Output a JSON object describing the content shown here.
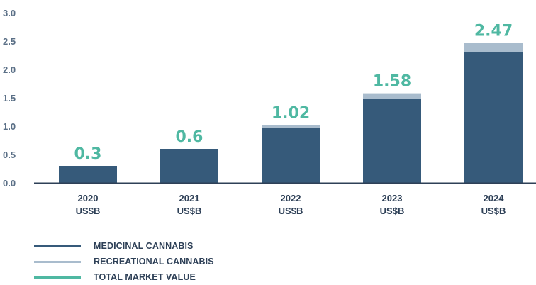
{
  "chart_data": {
    "type": "bar",
    "stacked": true,
    "categories": [
      "2020",
      "2021",
      "2022",
      "2023",
      "2024"
    ],
    "unit_label": "US$B",
    "series": [
      {
        "name": "MEDICINAL CANNABIS",
        "values": [
          0.3,
          0.6,
          0.97,
          1.48,
          2.3
        ],
        "color": "#365a7a"
      },
      {
        "name": "RECREATIONAL CANNABIS",
        "values": [
          0.0,
          0.0,
          0.05,
          0.1,
          0.17
        ],
        "color": "#a9bccd"
      }
    ],
    "totals": {
      "name": "TOTAL MARKET VALUE",
      "values": [
        "0.3",
        "0.6",
        "1.02",
        "1.58",
        "2.47"
      ],
      "color": "#4fb8a2"
    },
    "ylim": [
      0,
      3.0
    ],
    "yticks": [
      "0.0",
      "0.5",
      "1.0",
      "1.5",
      "2.0",
      "2.5",
      "3.0"
    ],
    "grid": false,
    "legend_position": "bottom-left",
    "axis_color": "#2e4057"
  }
}
